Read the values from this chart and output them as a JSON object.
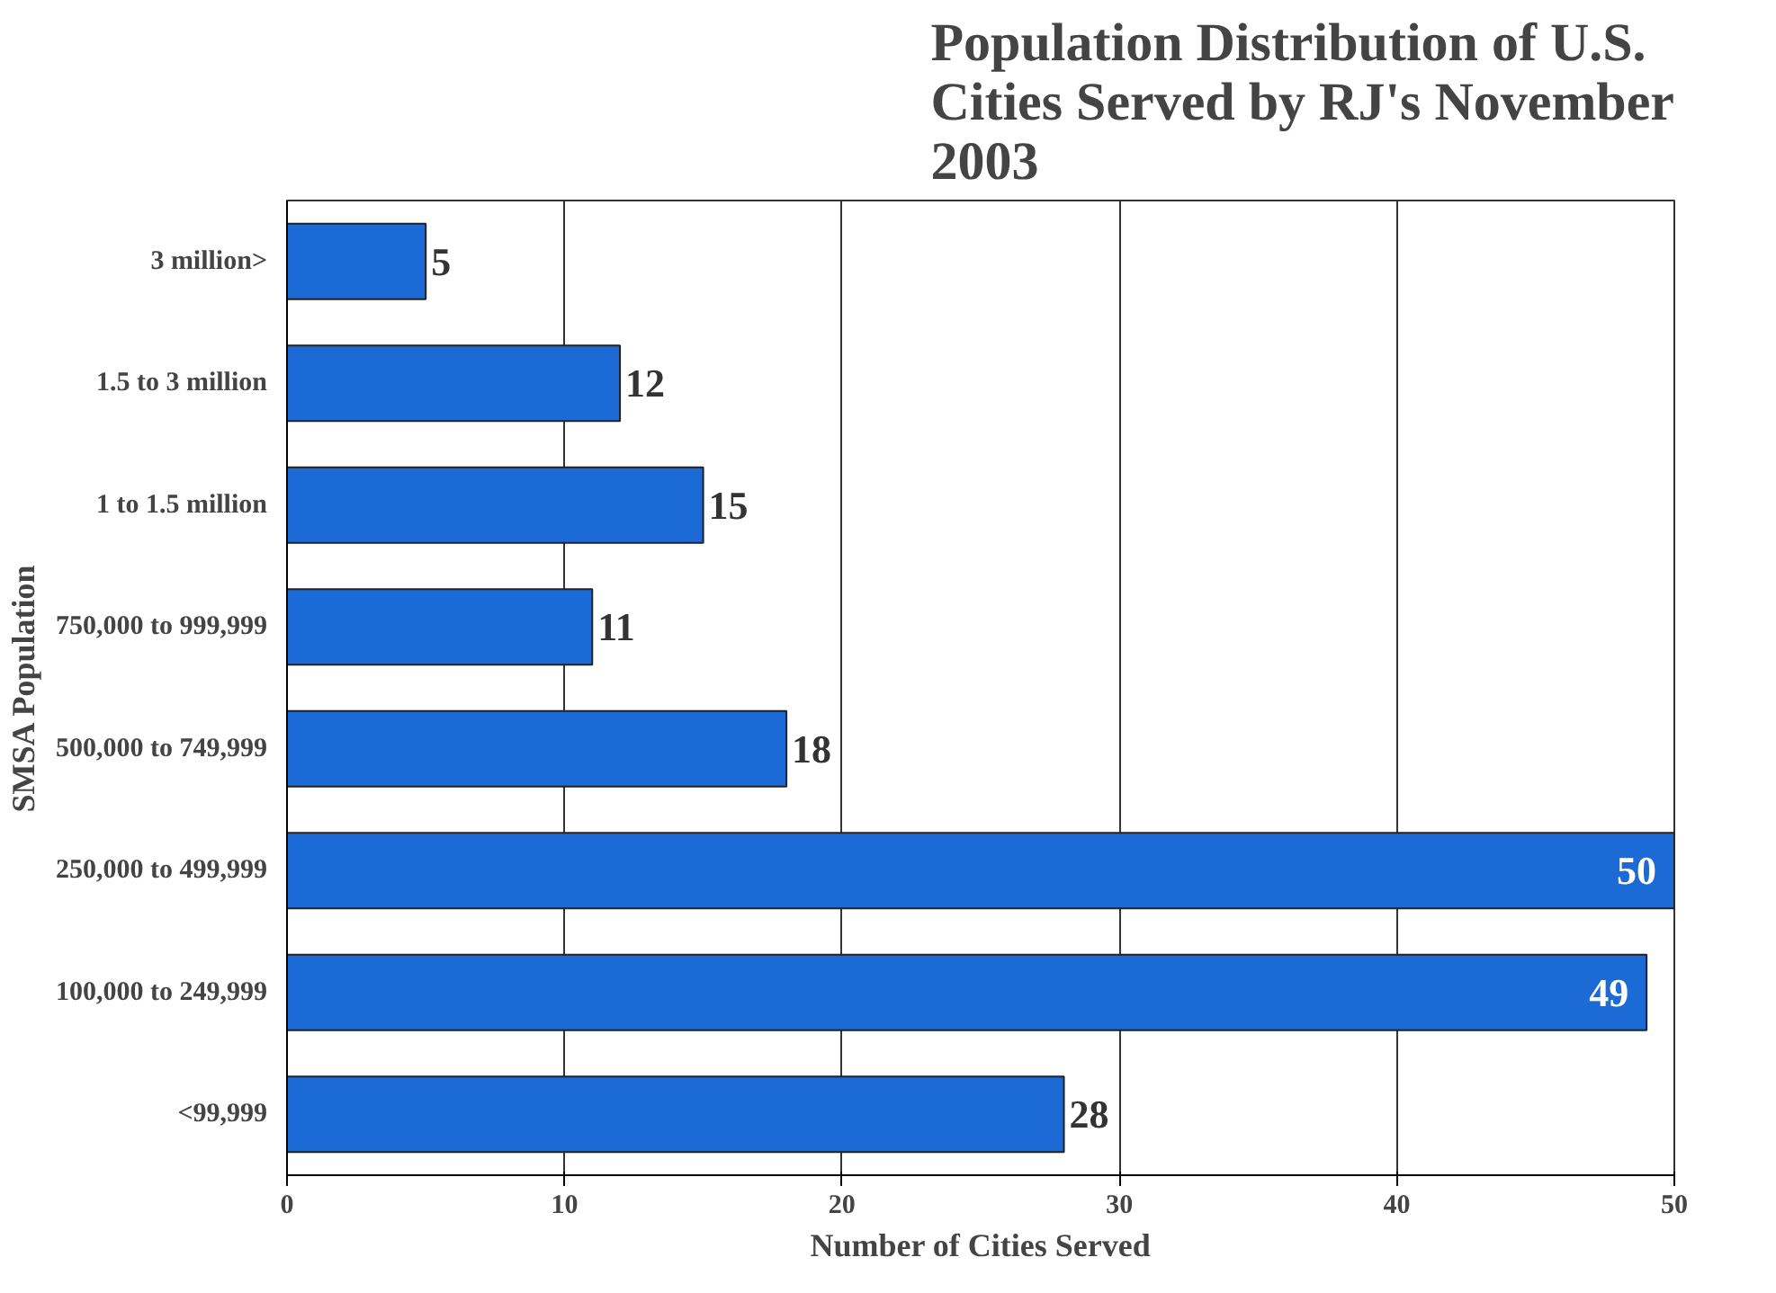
{
  "chart_data": {
    "type": "bar",
    "orientation": "horizontal",
    "title": "Population Distribution of U.S. Cities Served by RJ's November 2003",
    "xlabel": "Number of Cities Served",
    "ylabel": "SMSA Population",
    "categories": [
      "3 million>",
      "1.5 to 3 million",
      "1 to 1.5 million",
      "750,000 to 999,999",
      "500,000 to 749,999",
      "250,000 to 499,999",
      "100,000 to 249,999",
      "<99,999"
    ],
    "values": [
      5,
      12,
      15,
      11,
      18,
      50,
      49,
      28
    ],
    "color": "#1c6ad6",
    "xlim": [
      0,
      50
    ],
    "xticks": [
      0,
      10,
      20,
      30,
      40,
      50
    ],
    "grid": "x",
    "data_labels": true
  }
}
